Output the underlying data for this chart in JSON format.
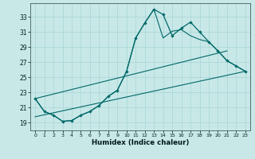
{
  "xlabel": "Humidex (Indice chaleur)",
  "xlim": [
    -0.5,
    23.5
  ],
  "ylim": [
    18.0,
    34.8
  ],
  "xticks": [
    0,
    1,
    2,
    3,
    4,
    5,
    6,
    7,
    8,
    9,
    10,
    11,
    12,
    13,
    14,
    15,
    16,
    17,
    18,
    19,
    20,
    21,
    22,
    23
  ],
  "yticks": [
    19,
    21,
    23,
    25,
    27,
    29,
    31,
    33
  ],
  "bg_color": "#c8e8e8",
  "line_color": "#006868",
  "line1_y": [
    22.2,
    20.5,
    20.0,
    19.2,
    19.3,
    20.0,
    20.5,
    21.3,
    22.5,
    23.3,
    25.8,
    30.2,
    32.2,
    34.0,
    33.3,
    30.5,
    31.5,
    32.3,
    31.0,
    29.7,
    28.5,
    27.2,
    26.5,
    25.8
  ],
  "line2_y": [
    22.2,
    20.5,
    20.0,
    19.2,
    19.3,
    20.0,
    20.5,
    21.3,
    22.5,
    23.3,
    25.8,
    30.2,
    32.2,
    34.0,
    30.2,
    31.1,
    31.3,
    30.5,
    30.0,
    29.7,
    28.5,
    27.2,
    26.5,
    25.8
  ],
  "line3_x": [
    0,
    21
  ],
  "line3_y": [
    22.2,
    28.5
  ],
  "line4_x": [
    0,
    23
  ],
  "line4_y": [
    19.8,
    25.8
  ]
}
